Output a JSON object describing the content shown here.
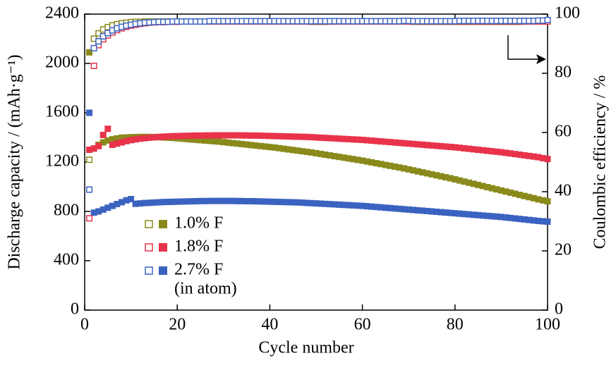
{
  "chart_data": {
    "type": "scatter",
    "xlabel": "Cycle number",
    "ylabel": "Discharge capacity / (mAh·g⁻¹)",
    "y2label": "Coulombic efficiency / %",
    "annotation": "(in atom)",
    "xlim": [
      0,
      100
    ],
    "xticks": [
      0,
      20,
      40,
      60,
      80,
      100
    ],
    "ylim": [
      0,
      2400
    ],
    "yticks": [
      0,
      400,
      800,
      1200,
      1600,
      2000,
      2400
    ],
    "y2lim": [
      0,
      100
    ],
    "y2ticks": [
      0,
      20,
      40,
      60,
      80,
      100
    ],
    "x": [
      1,
      2,
      3,
      4,
      5,
      6,
      7,
      8,
      9,
      10,
      11,
      12,
      13,
      14,
      15,
      16,
      17,
      18,
      19,
      20,
      21,
      22,
      23,
      24,
      25,
      26,
      27,
      28,
      29,
      30,
      31,
      32,
      33,
      34,
      35,
      36,
      37,
      38,
      39,
      40,
      41,
      42,
      43,
      44,
      45,
      46,
      47,
      48,
      49,
      50,
      51,
      52,
      53,
      54,
      55,
      56,
      57,
      58,
      59,
      60,
      61,
      62,
      63,
      64,
      65,
      66,
      67,
      68,
      69,
      70,
      71,
      72,
      73,
      74,
      75,
      76,
      77,
      78,
      79,
      80,
      81,
      82,
      83,
      84,
      85,
      86,
      87,
      88,
      89,
      90,
      91,
      92,
      93,
      94,
      95,
      96,
      97,
      98,
      99,
      100
    ],
    "series": [
      {
        "name": "1.0% F",
        "color": "#8a8a1c",
        "values": [
          2090,
          1310,
          1340,
          1360,
          1375,
          1385,
          1392,
          1398,
          1400,
          1402,
          1403,
          1404,
          1404,
          1404,
          1403,
          1402,
          1400,
          1398,
          1396,
          1393,
          1390,
          1387,
          1384,
          1381,
          1378,
          1375,
          1372,
          1369,
          1366,
          1362,
          1358,
          1354,
          1350,
          1346,
          1342,
          1338,
          1334,
          1330,
          1326,
          1322,
          1318,
          1313,
          1308,
          1303,
          1298,
          1293,
          1288,
          1283,
          1278,
          1272,
          1266,
          1260,
          1254,
          1248,
          1242,
          1236,
          1230,
          1224,
          1218,
          1212,
          1205,
          1198,
          1191,
          1184,
          1177,
          1170,
          1163,
          1156,
          1149,
          1141,
          1133,
          1125,
          1117,
          1109,
          1101,
          1093,
          1085,
          1077,
          1069,
          1060,
          1051,
          1042,
          1033,
          1024,
          1015,
          1006,
          997,
          988,
          979,
          970,
          961,
          952,
          943,
          934,
          925,
          916,
          907,
          898,
          890,
          882
        ],
        "efficiency": [
          50.8,
          91.7,
          93.5,
          94.8,
          95.6,
          96.2,
          96.6,
          96.9,
          97.1,
          97.3,
          97.4,
          97.4,
          97.5,
          97.5,
          97.5,
          97.5,
          97.5,
          97.5,
          97.5,
          97.5,
          97.5,
          97.5,
          97.5,
          97.5,
          97.5,
          97.5,
          97.5,
          97.5,
          97.5,
          97.5,
          97.5,
          97.5,
          97.5,
          97.5,
          97.5,
          97.5,
          97.5,
          97.5,
          97.5,
          97.5,
          97.5,
          97.5,
          97.5,
          97.5,
          97.5,
          97.5,
          97.5,
          97.5,
          97.4,
          97.4,
          97.4,
          97.4,
          97.5,
          97.5,
          97.5,
          97.5,
          97.5,
          97.5,
          97.5,
          97.5,
          97.5,
          97.5,
          97.5,
          97.5,
          97.5,
          97.5,
          97.5,
          97.5,
          97.5,
          97.5,
          97.4,
          97.4,
          97.4,
          97.4,
          97.4,
          97.4,
          97.4,
          97.4,
          97.4,
          97.4,
          97.4,
          97.4,
          97.4,
          97.4,
          97.4,
          97.4,
          97.4,
          97.4,
          97.4,
          97.4,
          97.4,
          97.4,
          97.4,
          97.4,
          97.5,
          97.5,
          97.5,
          97.5,
          97.5,
          97.5
        ]
      },
      {
        "name": "1.8% F",
        "color": "#e8334a",
        "values": [
          1300,
          1310,
          1330,
          1420,
          1470,
          1340,
          1350,
          1360,
          1370,
          1378,
          1384,
          1390,
          1394,
          1398,
          1401,
          1404,
          1406,
          1408,
          1410,
          1411,
          1412,
          1413,
          1414,
          1415,
          1415,
          1416,
          1416,
          1417,
          1417,
          1417,
          1417,
          1417,
          1417,
          1416,
          1416,
          1415,
          1415,
          1414,
          1413,
          1412,
          1411,
          1410,
          1409,
          1408,
          1407,
          1406,
          1405,
          1404,
          1402,
          1400,
          1398,
          1396,
          1394,
          1392,
          1390,
          1388,
          1386,
          1384,
          1382,
          1380,
          1377,
          1374,
          1371,
          1368,
          1365,
          1362,
          1359,
          1356,
          1353,
          1350,
          1347,
          1344,
          1341,
          1338,
          1335,
          1332,
          1329,
          1326,
          1323,
          1320,
          1316,
          1312,
          1308,
          1304,
          1300,
          1296,
          1292,
          1288,
          1284,
          1280,
          1275,
          1270,
          1265,
          1260,
          1255,
          1250,
          1245,
          1240,
          1232,
          1225
        ],
        "efficiency": [
          31.0,
          82.5,
          89.5,
          91.5,
          92.8,
          93.8,
          94.6,
          95.2,
          95.7,
          96.1,
          96.4,
          96.7,
          96.9,
          97.1,
          97.2,
          97.3,
          97.3,
          97.4,
          97.4,
          97.4,
          97.5,
          97.5,
          97.5,
          97.5,
          97.5,
          97.5,
          97.5,
          97.5,
          97.5,
          97.5,
          97.5,
          97.5,
          97.5,
          97.5,
          97.5,
          97.5,
          97.5,
          97.5,
          97.5,
          97.5,
          97.5,
          97.5,
          97.5,
          97.5,
          97.5,
          97.5,
          97.5,
          97.5,
          97.5,
          97.5,
          97.5,
          97.5,
          97.5,
          97.5,
          97.5,
          97.5,
          97.5,
          97.5,
          97.5,
          97.5,
          97.5,
          97.5,
          97.5,
          97.5,
          97.5,
          97.5,
          97.5,
          97.5,
          97.5,
          97.5,
          97.5,
          97.5,
          97.5,
          97.5,
          97.5,
          97.5,
          97.5,
          97.5,
          97.5,
          97.5,
          97.5,
          97.5,
          97.5,
          97.5,
          97.5,
          97.5,
          97.5,
          97.5,
          97.5,
          97.5,
          97.5,
          97.5,
          97.5,
          97.5,
          97.5,
          97.5,
          97.5,
          97.5,
          97.5,
          97.5
        ]
      },
      {
        "name": "2.7% F",
        "color": "#3a62c0",
        "values": [
          1600,
          790,
          800,
          815,
          830,
          845,
          860,
          875,
          890,
          900,
          862,
          865,
          868,
          870,
          872,
          874,
          876,
          877,
          878,
          879,
          880,
          881,
          882,
          883,
          884,
          884,
          885,
          885,
          885,
          885,
          885,
          885,
          884,
          884,
          883,
          883,
          882,
          881,
          880,
          879,
          878,
          877,
          876,
          875,
          874,
          873,
          871,
          869,
          867,
          865,
          863,
          861,
          859,
          857,
          855,
          853,
          851,
          849,
          847,
          845,
          842,
          839,
          836,
          833,
          830,
          827,
          824,
          821,
          818,
          815,
          812,
          809,
          806,
          803,
          800,
          797,
          794,
          791,
          788,
          785,
          782,
          779,
          776,
          773,
          770,
          767,
          764,
          761,
          758,
          755,
          751,
          747,
          743,
          739,
          735,
          731,
          727,
          723,
          720,
          717
        ],
        "efficiency": [
          40.7,
          88.5,
          90.8,
          92.5,
          93.6,
          94.5,
          95.2,
          95.7,
          96.1,
          96.4,
          96.7,
          96.9,
          97.1,
          97.2,
          97.3,
          97.4,
          97.4,
          97.4,
          97.5,
          97.5,
          97.5,
          97.5,
          97.5,
          97.5,
          97.5,
          97.5,
          97.6,
          97.6,
          97.6,
          97.6,
          97.6,
          97.6,
          97.6,
          97.6,
          97.6,
          97.6,
          97.6,
          97.6,
          97.6,
          97.6,
          97.6,
          97.6,
          97.6,
          97.6,
          97.6,
          97.6,
          97.6,
          97.6,
          97.6,
          97.6,
          97.6,
          97.6,
          97.6,
          97.6,
          97.6,
          97.6,
          97.6,
          97.6,
          97.6,
          97.6,
          97.6,
          97.6,
          97.6,
          97.6,
          97.6,
          97.6,
          97.6,
          97.6,
          97.7,
          97.7,
          97.6,
          97.6,
          97.6,
          97.6,
          97.6,
          97.6,
          97.6,
          97.6,
          97.6,
          97.6,
          97.7,
          97.7,
          97.7,
          97.7,
          97.7,
          97.7,
          97.7,
          97.7,
          97.7,
          97.7,
          97.7,
          97.7,
          97.7,
          97.7,
          97.7,
          97.7,
          97.7,
          97.8,
          97.8,
          98.0
        ]
      }
    ]
  }
}
